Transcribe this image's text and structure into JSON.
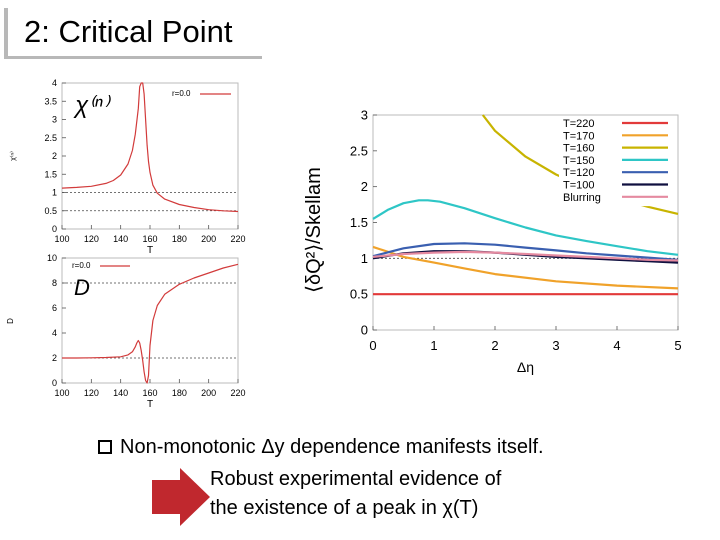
{
  "slide": {
    "title": "2: Critical Point",
    "bullet_prefix": "Non-monotonic ",
    "bullet_symbol": "Δy",
    "bullet_suffix": " dependence manifests itself.",
    "line2": "Robust experimental evidence of",
    "line3_prefix": "the existence of a peak in ",
    "line3_symbol": "χ",
    "line3_suffix": "(T)"
  },
  "colors": {
    "curve": "#d23b3b",
    "arrow": "#c0282e",
    "frame": "#bbbbbb"
  },
  "chart_data": [
    {
      "type": "line",
      "ylabel": "χ⁽ⁿ⁾",
      "inset_label": "χ⁽ⁿ⁾",
      "xlabel": "T",
      "xlim": [
        100,
        220
      ],
      "ylim": [
        0,
        4
      ],
      "xticks": [
        100,
        120,
        140,
        160,
        180,
        200,
        220
      ],
      "yticks": [
        0,
        0.5,
        1,
        1.5,
        2,
        2.5,
        3,
        3.5,
        4
      ],
      "ytick_labels": [
        "0",
        "0.5",
        "1",
        "1.5",
        "2",
        "2.5",
        "3",
        "3.5",
        "4"
      ],
      "reference_lines": [
        1,
        0.5
      ],
      "legend": "r=0.0",
      "series": [
        {
          "name": "r=0.0",
          "color": "#d23b3b",
          "x": [
            100,
            110,
            120,
            130,
            135,
            140,
            145,
            148,
            150,
            152,
            153,
            154,
            155,
            156,
            157,
            158,
            159,
            160,
            162,
            165,
            170,
            180,
            190,
            200,
            210,
            220
          ],
          "y": [
            1.12,
            1.14,
            1.17,
            1.25,
            1.33,
            1.48,
            1.78,
            2.15,
            2.6,
            3.3,
            3.9,
            4.0,
            4.0,
            3.7,
            3.0,
            2.3,
            1.85,
            1.55,
            1.2,
            0.98,
            0.82,
            0.67,
            0.59,
            0.53,
            0.5,
            0.48
          ]
        }
      ]
    },
    {
      "type": "line",
      "ylabel": "D",
      "inset_label": "D",
      "xlabel": "T",
      "xlim": [
        100,
        220
      ],
      "ylim": [
        0,
        10
      ],
      "xticks": [
        100,
        120,
        140,
        160,
        180,
        200,
        220
      ],
      "yticks": [
        0,
        2,
        4,
        6,
        8,
        10
      ],
      "reference_lines": [
        2,
        8
      ],
      "legend": "r=0.0",
      "series": [
        {
          "name": "r=0.0",
          "color": "#d23b3b",
          "x": [
            100,
            110,
            120,
            130,
            140,
            145,
            148,
            150,
            151,
            152,
            153,
            154,
            155,
            156,
            157,
            158,
            159,
            160,
            162,
            165,
            170,
            180,
            190,
            200,
            210,
            220
          ],
          "y": [
            2.0,
            2.0,
            2.02,
            2.04,
            2.1,
            2.25,
            2.5,
            2.9,
            3.2,
            3.4,
            3.2,
            2.6,
            1.8,
            0.9,
            0.2,
            0.0,
            0.6,
            3.0,
            5.0,
            6.2,
            7.1,
            7.9,
            8.4,
            8.8,
            9.2,
            9.5
          ]
        }
      ]
    },
    {
      "type": "line",
      "ylabel": "⟨δQ²⟩/Skellam",
      "xlabel": "Δη",
      "xlim": [
        0,
        5
      ],
      "ylim": [
        0,
        3
      ],
      "xticks": [
        0,
        1,
        2,
        3,
        4,
        5
      ],
      "yticks": [
        0,
        0.5,
        1,
        1.5,
        2,
        2.5,
        3
      ],
      "ytick_labels": [
        "0",
        "0.5",
        "1",
        "1.5",
        "2",
        "2.5",
        "3"
      ],
      "reference_lines": [
        1
      ],
      "legend_position": "top-right",
      "series": [
        {
          "name": "T=220",
          "color": "#e23a3a",
          "x": [
            0,
            5
          ],
          "y": [
            0.5,
            0.5
          ]
        },
        {
          "name": "T=170",
          "color": "#f0a22a",
          "x": [
            0,
            0.5,
            1,
            1.5,
            2,
            3,
            4,
            5
          ],
          "y": [
            1.16,
            1.02,
            0.94,
            0.86,
            0.78,
            0.68,
            0.62,
            0.58
          ]
        },
        {
          "name": "T=160",
          "color": "#c8b400",
          "x": [
            1.8,
            2.0,
            2.5,
            3.0,
            3.5,
            4.0,
            4.5,
            5.0
          ],
          "y": [
            3.0,
            2.78,
            2.42,
            2.17,
            1.98,
            1.84,
            1.72,
            1.62
          ]
        },
        {
          "name": "T=150",
          "color": "#2ec6c6",
          "x": [
            0,
            0.25,
            0.5,
            0.75,
            0.9,
            1.1,
            1.5,
            2,
            2.5,
            3,
            3.5,
            4,
            4.5,
            5
          ],
          "y": [
            1.55,
            1.68,
            1.77,
            1.81,
            1.81,
            1.79,
            1.7,
            1.56,
            1.43,
            1.32,
            1.24,
            1.17,
            1.1,
            1.05
          ]
        },
        {
          "name": "T=120",
          "color": "#3a5fb0",
          "x": [
            0,
            0.5,
            1,
            1.5,
            2,
            2.5,
            3,
            3.5,
            4,
            4.5,
            5
          ],
          "y": [
            1.03,
            1.14,
            1.2,
            1.21,
            1.19,
            1.15,
            1.11,
            1.07,
            1.04,
            1.01,
            0.98
          ]
        },
        {
          "name": "T=100",
          "color": "#101040",
          "x": [
            0,
            0.5,
            1,
            1.5,
            2,
            2.5,
            3,
            3.5,
            4,
            4.5,
            5
          ],
          "y": [
            1.0,
            1.07,
            1.1,
            1.1,
            1.08,
            1.05,
            1.02,
            1.0,
            0.98,
            0.96,
            0.94
          ]
        },
        {
          "name": "Blurring",
          "color": "#e58aa0",
          "x": [
            0,
            0.5,
            1,
            1.5,
            2,
            2.5,
            3,
            3.5,
            4,
            4.5,
            5
          ],
          "y": [
            1.02,
            1.06,
            1.08,
            1.09,
            1.08,
            1.06,
            1.04,
            1.02,
            1.0,
            0.98,
            0.97
          ]
        }
      ]
    }
  ]
}
